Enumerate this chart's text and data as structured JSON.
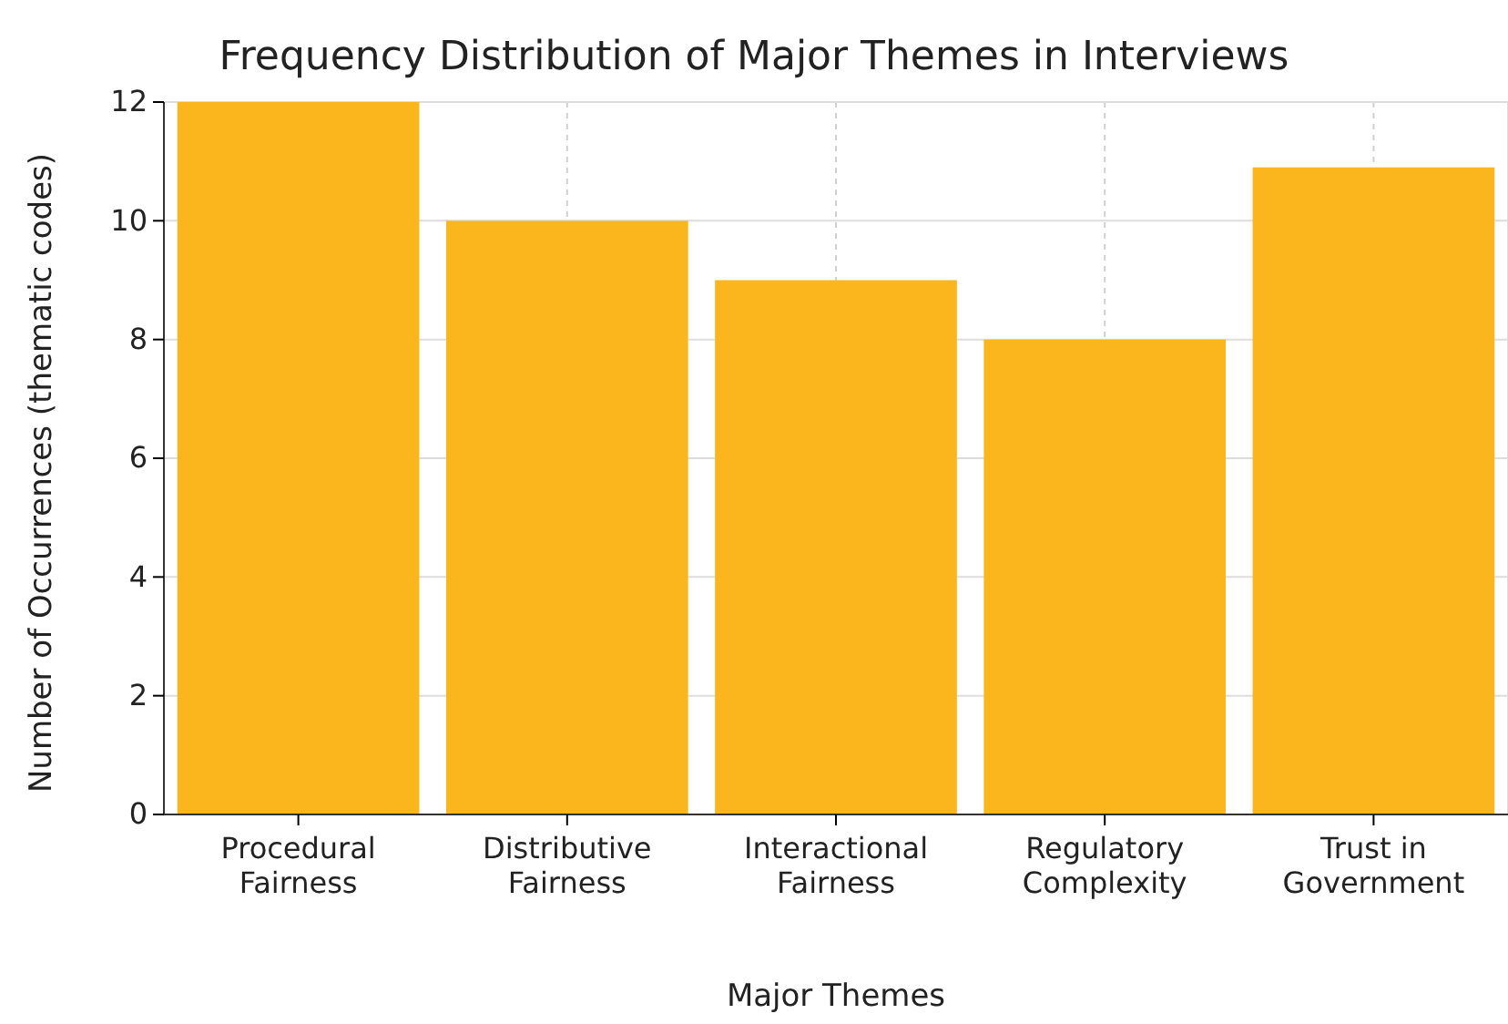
{
  "chart_data": {
    "type": "bar",
    "title": "Frequency Distribution of Major Themes in Interviews",
    "xlabel": "Major Themes",
    "ylabel": "Number of Occurrences (thematic codes)",
    "categories": [
      "Procedural\nFairness",
      "Distributive\nFairness",
      "Interactional\nFairness",
      "Regulatory\nComplexity",
      "Trust in\nGovernment"
    ],
    "values": [
      12,
      10,
      9,
      8,
      10.9
    ],
    "color": "#fbb61e",
    "ylim": [
      0,
      12
    ],
    "yticks": [
      0,
      2,
      4,
      6,
      8,
      10,
      12
    ],
    "grid": true
  }
}
